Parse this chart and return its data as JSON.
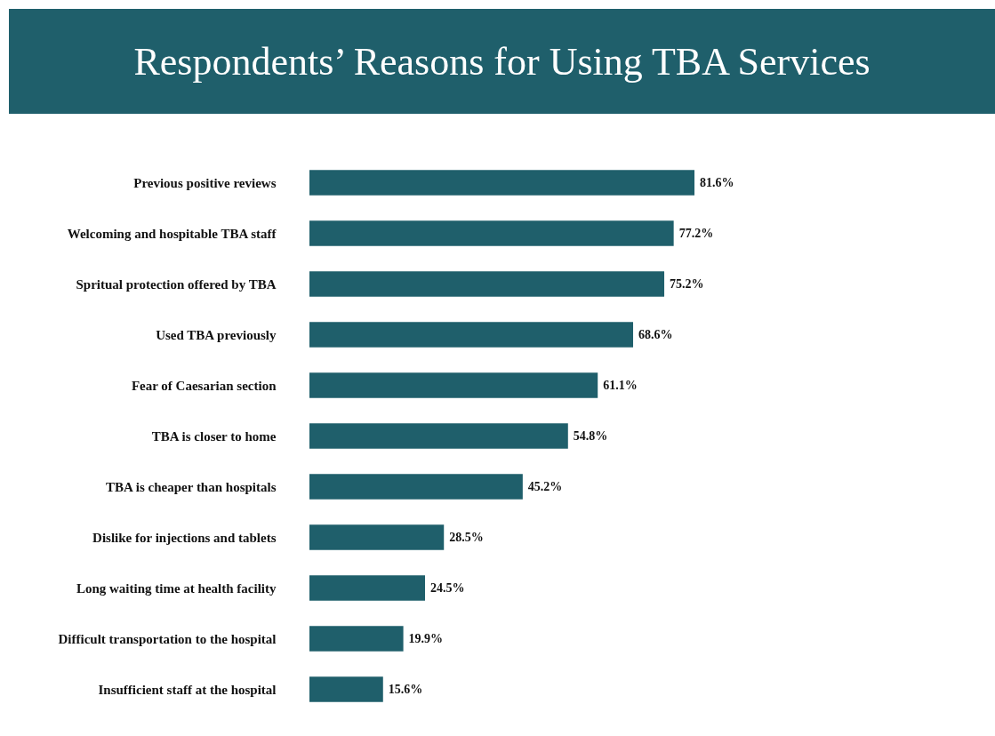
{
  "chart_data": {
    "type": "bar",
    "orientation": "horizontal",
    "title": "Respondents’ Reasons for Using TBA Services",
    "categories": [
      "Previous positive reviews",
      "Welcoming and hospitable TBA staff",
      "Spritual protection offered by TBA",
      "Used TBA previously",
      "Fear of Caesarian section",
      "TBA is closer to home",
      "TBA is cheaper than hospitals",
      "Dislike for injections and tablets",
      "Long waiting time at health facility",
      "Difficult transportation to the hospital",
      "Insufficient staff at the hospital"
    ],
    "values": [
      81.6,
      77.2,
      75.2,
      68.6,
      61.1,
      54.8,
      45.2,
      28.5,
      24.5,
      19.9,
      15.6
    ],
    "value_labels": [
      "81.6%",
      "77.2%",
      "75.2%",
      "68.6%",
      "61.1%",
      "54.8%",
      "45.2%",
      "28.5%",
      "24.5%",
      "19.9%",
      "15.6%"
    ],
    "color": "#1f5f6b"
  }
}
